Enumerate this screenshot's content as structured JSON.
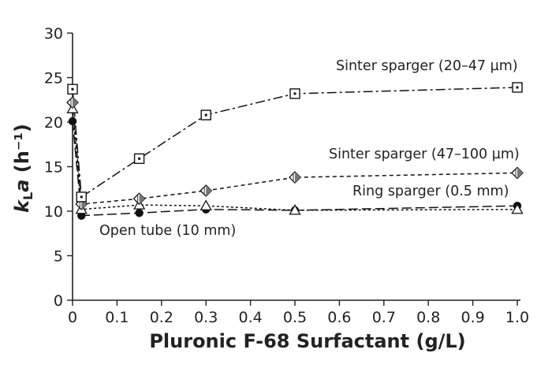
{
  "chart_data": {
    "type": "line",
    "title": "",
    "xlabel": "Pluronic F-68 Surfactant (g/L)",
    "ylabel_main": "k",
    "ylabel_sub": "L",
    "ylabel_a": "a",
    "ylabel_unit": " (h⁻¹)",
    "xlim": [
      0,
      1.0
    ],
    "ylim": [
      0,
      30
    ],
    "xticks": [
      0,
      0.1,
      0.2,
      0.3,
      0.4,
      0.5,
      0.6,
      0.7,
      0.8,
      0.9,
      1.0
    ],
    "xtick_labels": [
      "0",
      "0.1",
      "0.2",
      "0.3",
      "0.4",
      "0.5",
      "0.6",
      "0.7",
      "0.8",
      "0.9",
      "1.0"
    ],
    "yticks": [
      0,
      5,
      10,
      15,
      20,
      25,
      30
    ],
    "ytick_labels": [
      "0",
      "5",
      "10",
      "15",
      "20",
      "25",
      "30"
    ],
    "grid": false,
    "series": [
      {
        "name": "Sinter sparger (20–47 µm)",
        "marker": "square",
        "dash": "12 4 3 4",
        "x": [
          0,
          0.02,
          0.15,
          0.3,
          0.5,
          1.0
        ],
        "y": [
          23.7,
          11.6,
          15.9,
          20.8,
          23.2,
          23.9
        ]
      },
      {
        "name": "Sinter sparger (47–100 µm)",
        "marker": "diamond",
        "dash": "5 4",
        "x": [
          0,
          0.02,
          0.15,
          0.3,
          0.5,
          1.0
        ],
        "y": [
          22.2,
          10.8,
          11.4,
          12.3,
          13.8,
          14.3
        ]
      },
      {
        "name": "Ring sparger (0.5 mm)",
        "marker": "triangle",
        "dash": "3 3",
        "x": [
          0,
          0.02,
          0.15,
          0.3,
          0.5,
          1.0
        ],
        "y": [
          21.5,
          10.2,
          10.7,
          10.6,
          10.1,
          10.2
        ]
      },
      {
        "name": "Open tube (10 mm)",
        "marker": "circle",
        "dash": "12 5",
        "x": [
          0,
          0.02,
          0.15,
          0.3,
          0.5,
          1.0
        ],
        "y": [
          20.1,
          9.5,
          9.8,
          10.2,
          10.1,
          10.6
        ]
      }
    ]
  }
}
